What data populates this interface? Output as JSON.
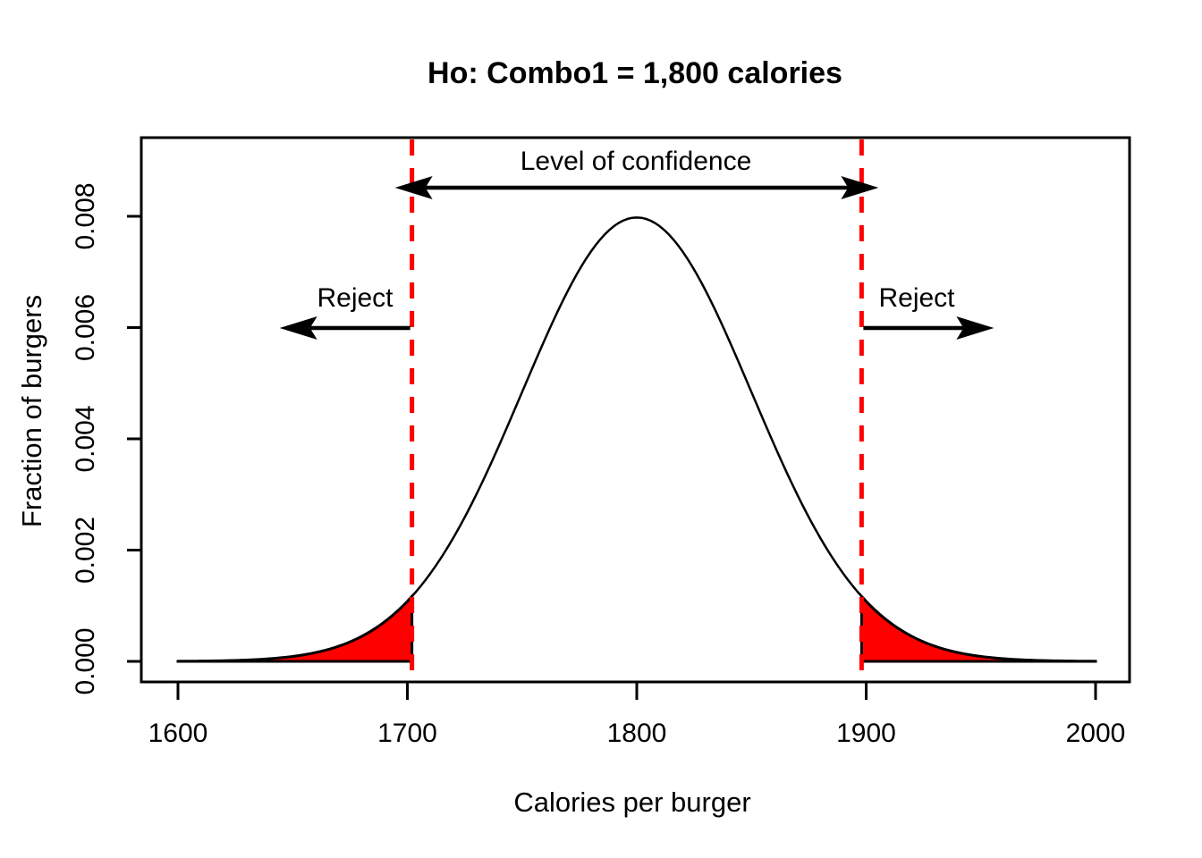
{
  "page": {
    "background": "#FFFFFF"
  },
  "chart_data": {
    "type": "line",
    "title": "Ho: Combo1 = 1,800 calories",
    "xlabel": "Calories per burger",
    "ylabel": "Fraction of burgers",
    "x_ticks": [
      "1600",
      "1700",
      "1800",
      "1900",
      "2000"
    ],
    "x_tick_values": [
      1600,
      1700,
      1800,
      1900,
      2000
    ],
    "y_ticks": [
      "0.000",
      "0.002",
      "0.004",
      "0.006",
      "0.008"
    ],
    "y_tick_values": [
      0,
      0.002,
      0.004,
      0.006,
      0.008
    ],
    "xlim": [
      1584,
      2016
    ],
    "ylim": [
      0,
      0.0094
    ],
    "grid": "off",
    "legend": "none",
    "series": [
      {
        "name": "null-sampling-distribution",
        "distribution": "normal",
        "mean": 1800,
        "sd": 50,
        "peak_density": 0.008,
        "x_range": [
          1600,
          2000
        ],
        "color": "#000000"
      }
    ],
    "critical_values": [
      1702,
      1898
    ],
    "rejection_regions": [
      {
        "side": "left",
        "from": 1600,
        "to": 1702
      },
      {
        "side": "right",
        "from": 1898,
        "to": 2000
      }
    ],
    "rejection_fill_color": "#FF0000",
    "critical_line_color": "#FF0000",
    "critical_line_style": "dashed",
    "curve_color": "#000000",
    "annotations": {
      "confidence": {
        "label": "Level of confidence",
        "arrow": "double-headed",
        "between": [
          1702,
          1898
        ]
      },
      "reject_left": {
        "label": "Reject",
        "arrow": "points-left"
      },
      "reject_right": {
        "label": "Reject",
        "arrow": "points-right"
      }
    }
  }
}
